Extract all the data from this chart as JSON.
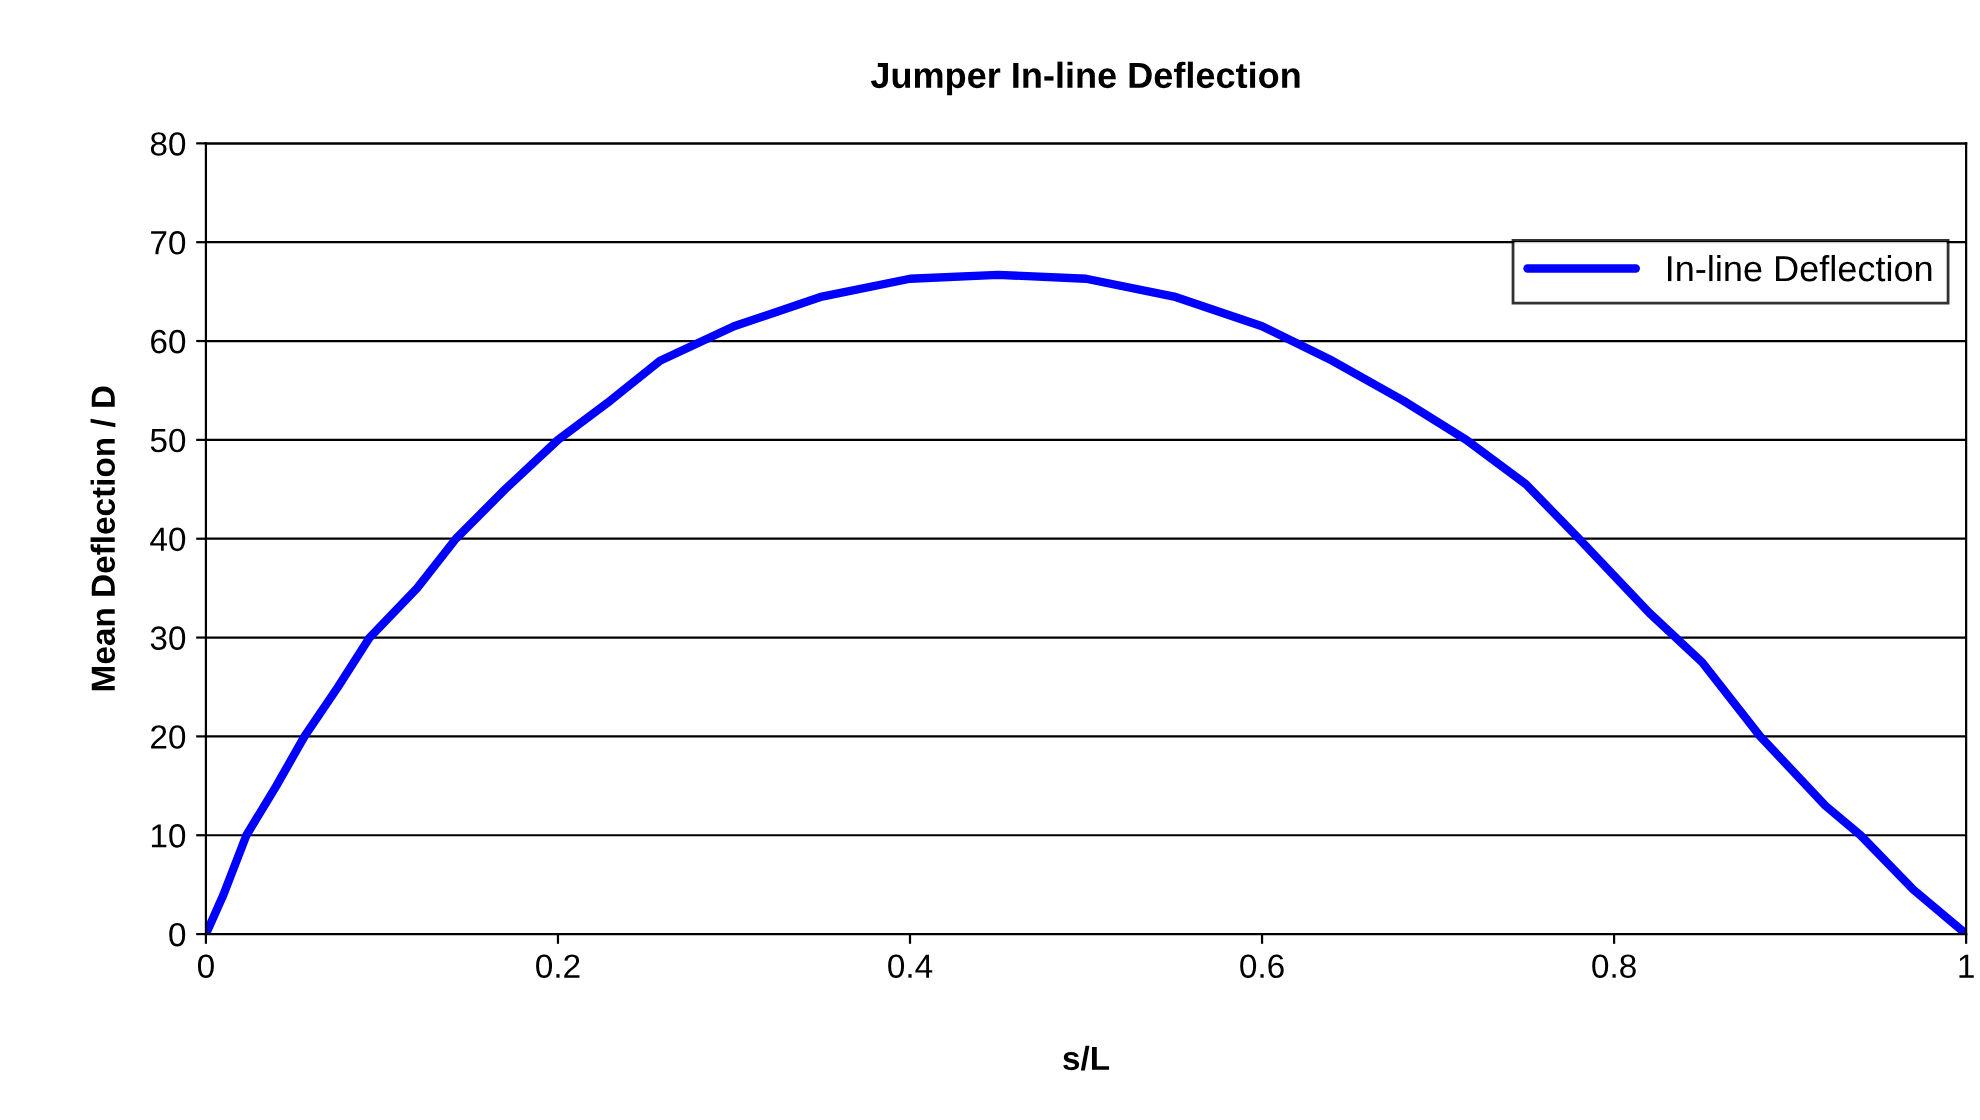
{
  "chart_data": {
    "type": "line",
    "title": "Jumper In-line Deflection",
    "xlabel": "s/L",
    "ylabel": "Mean Deflection / D",
    "series": [
      {
        "name": "In-line Deflection",
        "color": "#0000ff",
        "x": [
          0,
          0.01,
          0.023,
          0.04,
          0.056,
          0.075,
          0.093,
          0.12,
          0.142,
          0.17,
          0.2,
          0.23,
          0.258,
          0.3,
          0.35,
          0.4,
          0.45,
          0.5,
          0.55,
          0.6,
          0.64,
          0.68,
          0.716,
          0.75,
          0.78,
          0.82,
          0.85,
          0.883,
          0.92,
          0.94,
          0.97,
          1.0
        ],
        "values": [
          0,
          4,
          10,
          15,
          20,
          25,
          30,
          35,
          40,
          45,
          50,
          54,
          58,
          61.5,
          64.5,
          66.3,
          66.7,
          66.3,
          64.5,
          61.5,
          58,
          54,
          50,
          45.5,
          40,
          32.5,
          27.5,
          20,
          13,
          10,
          4.5,
          0
        ]
      }
    ],
    "xlim": [
      0,
      1
    ],
    "xticks": [
      0,
      0.2,
      0.4,
      0.6,
      0.8,
      1
    ],
    "ylim": [
      0,
      80
    ],
    "yticks": [
      0,
      10,
      20,
      30,
      40,
      50,
      60,
      70,
      80
    ],
    "grid": "y",
    "legend": "top right",
    "marker": "none",
    "line_style": "solid"
  }
}
